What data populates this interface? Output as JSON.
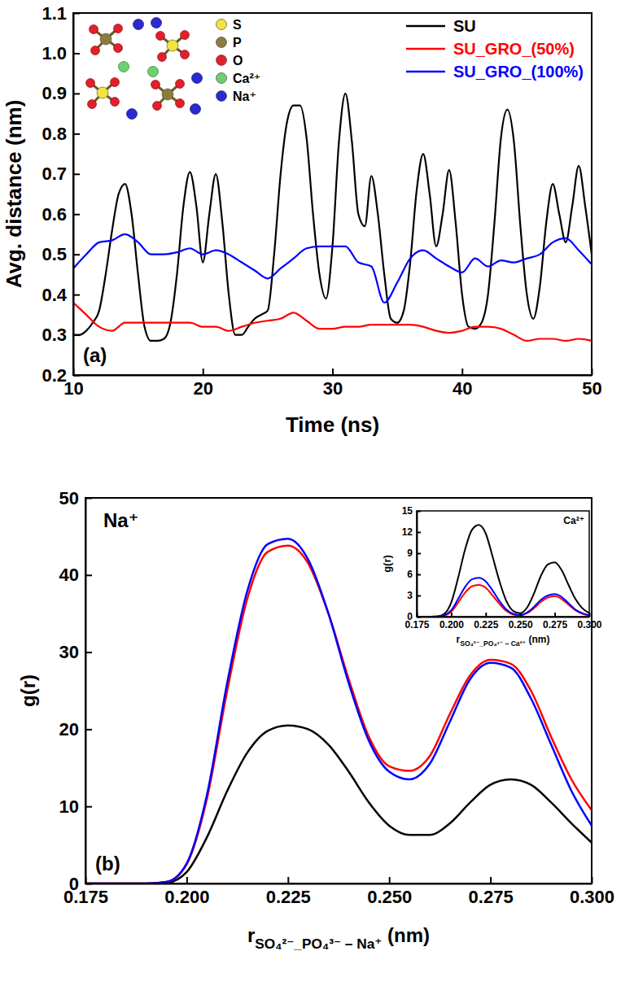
{
  "chart_data": [
    {
      "type": "line",
      "panel_label": "(a)",
      "xlabel": "Time (ns)",
      "ylabel": "Avg. distance (nm)",
      "xlim": [
        10,
        50
      ],
      "ylim": [
        0.2,
        1.1
      ],
      "xticks": [
        10,
        20,
        30,
        40,
        50
      ],
      "yticks": [
        0.2,
        0.3,
        0.4,
        0.5,
        0.6,
        0.7,
        0.8,
        0.9,
        {
          "value": 1,
          "label": "1.0"
        },
        1.1
      ],
      "legend": "upper right",
      "annotations": [
        {
          "text": "S",
          "color": "#f2e43a"
        },
        {
          "text": "P",
          "color": "#8c7c3c"
        },
        {
          "text": "O",
          "color": "#e3202a"
        },
        {
          "text": "Ca²⁺",
          "color": "#6fd06f"
        },
        {
          "text": "Na⁺",
          "color": "#2a2ad0"
        }
      ],
      "series": [
        {
          "name": "SU",
          "color": "#000000",
          "x": [
            10,
            10.5,
            11,
            11.5,
            12,
            12.5,
            13,
            13.5,
            14,
            14.5,
            15,
            15.5,
            16,
            16.5,
            17,
            17.5,
            18,
            18.5,
            19,
            19.5,
            20,
            20.5,
            21,
            21.5,
            22,
            22.5,
            23,
            23.5,
            24,
            24.5,
            25,
            25.5,
            26,
            26.5,
            27,
            27.5,
            28,
            28.5,
            29,
            29.5,
            30,
            30.5,
            31,
            31.5,
            32,
            32.5,
            33,
            33.5,
            34,
            34.5,
            35,
            35.5,
            36,
            36.5,
            37,
            37.5,
            38,
            38.5,
            39,
            39.5,
            40,
            40.5,
            41,
            41.5,
            42,
            42.5,
            43,
            43.5,
            44,
            44.5,
            45,
            45.5,
            46,
            46.5,
            47,
            47.5,
            48,
            48.5,
            49,
            49.5,
            50
          ],
          "values": [
            0.3,
            0.3,
            0.31,
            0.33,
            0.36,
            0.45,
            0.56,
            0.65,
            0.675,
            0.6,
            0.45,
            0.32,
            0.285,
            0.285,
            0.29,
            0.33,
            0.45,
            0.62,
            0.705,
            0.62,
            0.48,
            0.6,
            0.7,
            0.58,
            0.4,
            0.3,
            0.3,
            0.32,
            0.34,
            0.35,
            0.36,
            0.5,
            0.7,
            0.83,
            0.87,
            0.87,
            0.79,
            0.6,
            0.45,
            0.39,
            0.52,
            0.78,
            0.9,
            0.78,
            0.6,
            0.57,
            0.695,
            0.6,
            0.45,
            0.34,
            0.33,
            0.36,
            0.48,
            0.66,
            0.75,
            0.65,
            0.52,
            0.6,
            0.71,
            0.58,
            0.4,
            0.32,
            0.315,
            0.33,
            0.4,
            0.58,
            0.79,
            0.86,
            0.78,
            0.57,
            0.4,
            0.34,
            0.42,
            0.58,
            0.675,
            0.6,
            0.53,
            0.62,
            0.72,
            0.62,
            0.5
          ]
        },
        {
          "name": "SU_GRO_(50%)",
          "color": "#ff0000",
          "x": [
            10,
            11,
            12,
            13,
            14,
            15,
            16,
            17,
            18,
            19,
            20,
            21,
            22,
            23,
            24,
            25,
            26,
            27,
            28,
            29,
            30,
            31,
            32,
            33,
            34,
            35,
            36,
            37,
            38,
            39,
            40,
            41,
            42,
            43,
            44,
            45,
            46,
            47,
            48,
            49,
            50
          ],
          "values": [
            0.38,
            0.35,
            0.32,
            0.31,
            0.33,
            0.33,
            0.33,
            0.33,
            0.33,
            0.33,
            0.32,
            0.32,
            0.31,
            0.32,
            0.33,
            0.335,
            0.34,
            0.355,
            0.335,
            0.315,
            0.315,
            0.32,
            0.32,
            0.325,
            0.325,
            0.325,
            0.325,
            0.32,
            0.31,
            0.305,
            0.31,
            0.32,
            0.32,
            0.315,
            0.3,
            0.285,
            0.29,
            0.29,
            0.285,
            0.29,
            0.285
          ]
        },
        {
          "name": "SU_GRO_(100%)",
          "color": "#0000ff",
          "x": [
            10,
            11,
            12,
            13,
            14,
            15,
            16,
            17,
            18,
            19,
            20,
            21,
            22,
            23,
            24,
            25,
            26,
            27,
            28,
            29,
            30,
            31,
            32,
            33,
            34,
            35,
            36,
            37,
            38,
            39,
            40,
            41,
            42,
            43,
            44,
            45,
            46,
            47,
            48,
            49,
            50
          ],
          "values": [
            0.465,
            0.5,
            0.53,
            0.535,
            0.55,
            0.53,
            0.5,
            0.5,
            0.505,
            0.515,
            0.5,
            0.51,
            0.5,
            0.48,
            0.46,
            0.44,
            0.465,
            0.49,
            0.515,
            0.52,
            0.52,
            0.52,
            0.48,
            0.47,
            0.38,
            0.43,
            0.49,
            0.51,
            0.49,
            0.47,
            0.455,
            0.49,
            0.47,
            0.485,
            0.48,
            0.49,
            0.5,
            0.53,
            0.54,
            0.51,
            0.475
          ]
        }
      ]
    },
    {
      "type": "line",
      "panel_label": "(b)",
      "annotations": [
        {
          "text": "Na⁺"
        }
      ],
      "xlabel": {
        "text": "r",
        "subscript": "SO₄²⁻_PO₄³⁻ – Na⁺",
        "suffix": " (nm)"
      },
      "ylabel": "g(r)",
      "xlim": [
        0.175,
        0.3
      ],
      "ylim": [
        0,
        50
      ],
      "xticks": [
        0.175,
        {
          "value": 0.2,
          "label": "0.200"
        },
        0.225,
        {
          "value": 0.25,
          "label": "0.250"
        },
        0.275,
        {
          "value": 0.3,
          "label": "0.300"
        }
      ],
      "yticks": [
        0,
        10,
        20,
        30,
        40,
        50
      ],
      "x": [
        0.175,
        0.18,
        0.185,
        0.19,
        0.195,
        0.2,
        0.205,
        0.21,
        0.215,
        0.22,
        0.225,
        0.23,
        0.235,
        0.24,
        0.245,
        0.25,
        0.255,
        0.26,
        0.265,
        0.27,
        0.275,
        0.28,
        0.285,
        0.29,
        0.295,
        0.3
      ],
      "series": [
        {
          "color": "#000000",
          "values": [
            0,
            0,
            0,
            0,
            0.1,
            1.5,
            6,
            12,
            17,
            19.8,
            20.5,
            20,
            18,
            14.5,
            10.5,
            7.5,
            6.3,
            6.3,
            7.8,
            10.5,
            12.8,
            13.5,
            12.8,
            10.5,
            7.8,
            5.3
          ]
        },
        {
          "color": "#ff0000",
          "values": [
            0,
            0,
            0,
            0,
            0.2,
            2.5,
            11,
            25,
            37,
            43,
            43.8,
            41.5,
            35,
            26.5,
            19,
            15.2,
            14.6,
            16.5,
            22,
            27,
            29,
            28.5,
            25,
            19,
            13.5,
            9.5
          ]
        },
        {
          "color": "#0000ff",
          "values": [
            0,
            0,
            0,
            0,
            0.2,
            2.6,
            11.5,
            26,
            38,
            44,
            44.7,
            42,
            35,
            26,
            18.5,
            14.5,
            13.5,
            15.5,
            21,
            26.5,
            28.6,
            28,
            24,
            18,
            12,
            7.5
          ]
        }
      ]
    },
    {
      "type": "line",
      "annotations": [
        {
          "text": "Ca²⁺"
        }
      ],
      "xlabel": {
        "text": "r",
        "subscript": "SO₄²⁻_PO₄³⁻ – Ca²⁺",
        "suffix": " (nm)"
      },
      "ylabel": "g(r)",
      "xlim": [
        0.175,
        0.3
      ],
      "ylim": [
        0,
        15
      ],
      "xticks": [
        0.175,
        {
          "value": 0.2,
          "label": "0.200"
        },
        0.225,
        {
          "value": 0.25,
          "label": "0.250"
        },
        0.275,
        {
          "value": 0.3,
          "label": "0.300"
        }
      ],
      "yticks": [
        0,
        3,
        6,
        9,
        12,
        15
      ],
      "x": [
        0.175,
        0.18,
        0.185,
        0.19,
        0.195,
        0.2,
        0.205,
        0.21,
        0.215,
        0.22,
        0.225,
        0.23,
        0.235,
        0.24,
        0.245,
        0.25,
        0.255,
        0.26,
        0.265,
        0.27,
        0.275,
        0.28,
        0.285,
        0.29,
        0.295,
        0.3
      ],
      "series": [
        {
          "color": "#000000",
          "values": [
            0,
            0,
            0,
            0.05,
            0.4,
            2,
            5.5,
            9.5,
            12.3,
            13,
            11.8,
            8.5,
            5,
            2.2,
            0.8,
            0.5,
            1.3,
            3.3,
            5.8,
            7.4,
            7.7,
            6.6,
            4.5,
            2.5,
            1.2,
            0.5
          ]
        },
        {
          "color": "#ff0000",
          "values": [
            0,
            0,
            0,
            0,
            0.15,
            0.7,
            2,
            3.4,
            4.3,
            4.5,
            4.1,
            3,
            1.8,
            0.8,
            0.3,
            0.2,
            0.5,
            1.2,
            2.1,
            2.7,
            2.9,
            2.5,
            1.7,
            0.9,
            0.4,
            0.2
          ]
        },
        {
          "color": "#0000ff",
          "values": [
            0,
            0,
            0,
            0,
            0.2,
            0.9,
            2.5,
            4.2,
            5.3,
            5.5,
            5,
            3.7,
            2.2,
            1,
            0.4,
            0.25,
            0.6,
            1.4,
            2.4,
            3,
            3.2,
            2.8,
            1.9,
            1,
            0.5,
            0.2
          ]
        }
      ]
    }
  ]
}
